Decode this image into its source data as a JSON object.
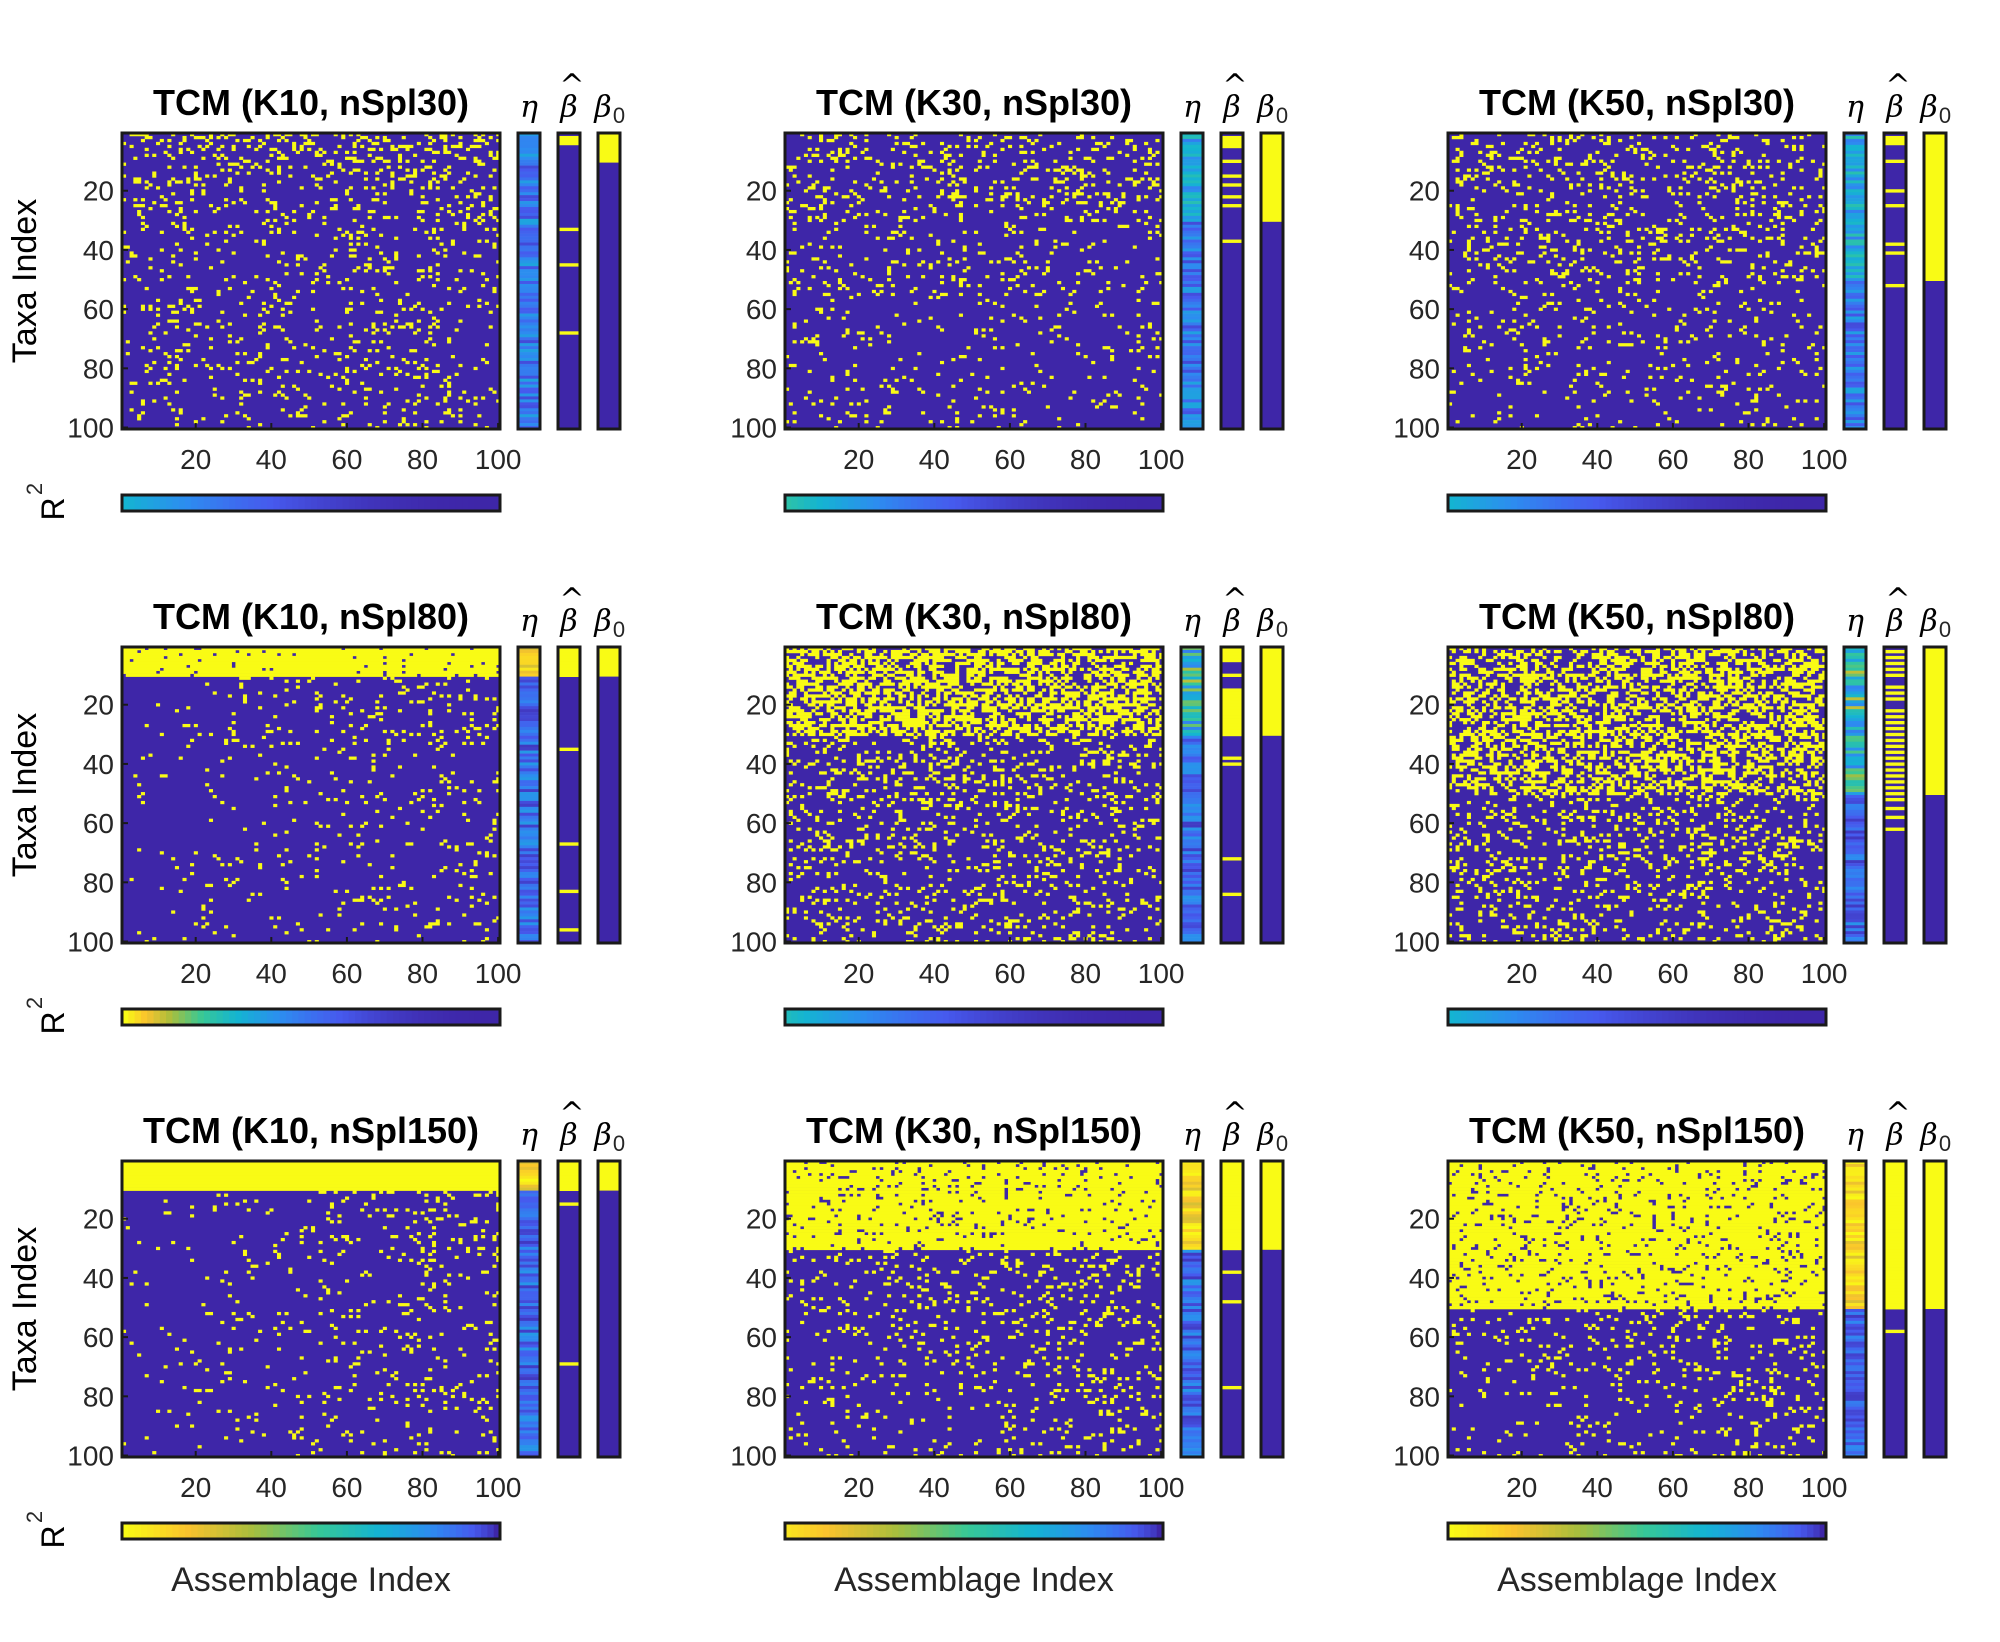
{
  "chart_data": {
    "type": "heatmap",
    "description_colormap": "parula",
    "colors": {
      "low": "#3e26a8",
      "high": "#f9fb15",
      "frame": "#1a1a1a"
    },
    "grid": false,
    "rows": [
      "nSpl30",
      "nSpl80",
      "nSpl150"
    ],
    "columns": [
      "K10",
      "K30",
      "K50"
    ],
    "x_ticks": [
      "20",
      "40",
      "60",
      "80",
      "100"
    ],
    "y_ticks": [
      "20",
      "40",
      "60",
      "80",
      "100"
    ],
    "xlim": [
      1,
      100
    ],
    "ylim": [
      1,
      100
    ],
    "side_labels": {
      "eta": "η",
      "beta_hat": "β",
      "beta_hat_accent": "^",
      "beta0": "β",
      "beta0_sub": "0"
    },
    "r2_label": "R",
    "r2_sup": "2",
    "ylabel": "Taxa Index",
    "xlabel": "Assemblage Index",
    "panels": [
      {
        "title": "TCM (K10, nSpl30)",
        "K": 10,
        "n": 30,
        "fill": 0.0,
        "occ": 0.1,
        "col_gradient": 0.2,
        "r2_start": 0.45,
        "beta_hat_rows": [
          2,
          3,
          4,
          33,
          45,
          68
        ]
      },
      {
        "title": "TCM (K30, nSpl30)",
        "K": 30,
        "n": 30,
        "fill": 0.0,
        "occ": 0.07,
        "col_gradient": 0.0,
        "r2_start": 0.55,
        "beta_hat_rows": [
          2,
          3,
          4,
          5,
          10,
          15,
          18,
          22,
          25,
          37
        ]
      },
      {
        "title": "TCM (K50, nSpl30)",
        "K": 50,
        "n": 30,
        "fill": 0.0,
        "occ": 0.07,
        "col_gradient": 0.0,
        "r2_start": 0.45,
        "beta_hat_rows": [
          2,
          3,
          4,
          10,
          20,
          25,
          38,
          41,
          52
        ]
      },
      {
        "title": "TCM (K10, nSpl80)",
        "K": 10,
        "n": 80,
        "fill": 0.95,
        "occ": 0.06,
        "col_gradient": 1.2,
        "r2_start": 1.0,
        "beta_hat_rows": [
          1,
          2,
          3,
          4,
          5,
          6,
          7,
          8,
          9,
          10,
          35,
          67,
          83,
          96
        ]
      },
      {
        "title": "TCM (K30, nSpl80)",
        "K": 30,
        "n": 80,
        "fill": 0.55,
        "occ": 0.15,
        "col_gradient": 0.0,
        "r2_start": 0.5,
        "beta_hat_rows": [
          1,
          2,
          3,
          4,
          5,
          10,
          15,
          16,
          17,
          18,
          19,
          20,
          21,
          22,
          23,
          24,
          25,
          26,
          27,
          28,
          29,
          30,
          38,
          40,
          72,
          84
        ]
      },
      {
        "title": "TCM (K50, nSpl80)",
        "K": 50,
        "n": 80,
        "fill": 0.45,
        "occ": 0.16,
        "col_gradient": 0.0,
        "r2_start": 0.45,
        "beta_hat_rows": [
          2,
          4,
          6,
          8,
          10,
          14,
          16,
          18,
          22,
          24,
          26,
          28,
          30,
          32,
          34,
          36,
          38,
          40,
          42,
          44,
          46,
          48,
          50,
          52,
          55,
          58,
          62
        ]
      },
      {
        "title": "TCM (K10, nSpl150)",
        "K": 10,
        "n": 150,
        "fill": 1.0,
        "occ": 0.06,
        "col_gradient": 1.5,
        "r2_start": 1.0,
        "beta_hat_rows": [
          1,
          2,
          3,
          4,
          5,
          6,
          7,
          8,
          9,
          10,
          15,
          69
        ]
      },
      {
        "title": "TCM (K30, nSpl150)",
        "K": 30,
        "n": 150,
        "fill": 0.9,
        "occ": 0.1,
        "col_gradient": 0.6,
        "r2_start": 0.95,
        "beta_hat_rows": [
          1,
          2,
          3,
          4,
          5,
          6,
          7,
          8,
          9,
          10,
          11,
          12,
          13,
          14,
          15,
          16,
          17,
          18,
          19,
          20,
          21,
          22,
          23,
          24,
          25,
          26,
          27,
          28,
          29,
          30,
          38,
          48,
          77
        ]
      },
      {
        "title": "TCM (K50, nSpl150)",
        "K": 50,
        "n": 150,
        "fill": 0.88,
        "occ": 0.09,
        "col_gradient": 0.9,
        "r2_start": 1.0,
        "beta_hat_rows": [
          1,
          2,
          3,
          4,
          5,
          6,
          7,
          8,
          9,
          10,
          11,
          12,
          13,
          14,
          15,
          16,
          17,
          18,
          19,
          20,
          21,
          22,
          23,
          24,
          25,
          26,
          27,
          28,
          29,
          30,
          31,
          32,
          33,
          34,
          35,
          36,
          37,
          38,
          39,
          40,
          41,
          42,
          43,
          44,
          45,
          46,
          47,
          48,
          49,
          50,
          58
        ]
      }
    ]
  }
}
